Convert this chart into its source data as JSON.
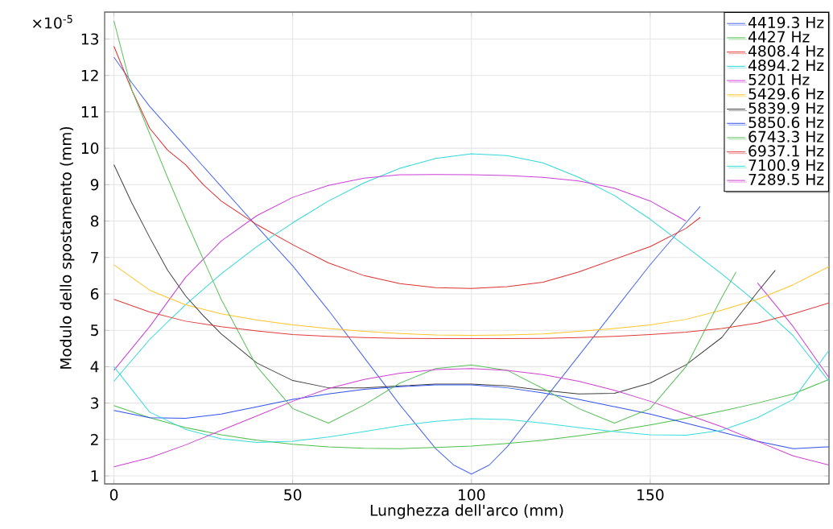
{
  "chart_data": {
    "type": "line",
    "xlabel": "Lunghezza dell'arco (mm)",
    "ylabel": "Modulo dello spostamento (mm)",
    "annotations": [
      "×10$^{-5}$"
    ],
    "x": [
      0,
      10,
      20,
      30,
      40,
      50,
      60,
      70,
      80,
      90,
      100,
      110,
      120,
      130,
      140,
      150,
      160,
      170,
      180,
      190,
      200
    ],
    "xlim": [
      -2.6,
      200
    ],
    "ylim": [
      0.78,
      13.74
    ],
    "xticks": [
      0,
      50,
      100,
      150,
      {
        "value": 200,
        "label": null
      }
    ],
    "yticks": [
      1,
      2,
      3,
      4,
      5,
      6,
      7,
      8,
      9,
      10,
      11,
      12,
      13
    ],
    "grid": true,
    "legend": "top right",
    "marker": "none",
    "line_style": "solid",
    "series": [
      {
        "name": "4419.3 Hz",
        "color": "#4a66f0",
        "x": [
          0,
          5,
          10,
          15,
          20,
          25,
          30,
          40,
          50,
          60,
          70,
          80,
          90,
          95,
          100,
          105,
          110,
          120,
          130,
          140,
          150,
          160,
          164
        ],
        "values": [
          12.5,
          11.8,
          11.15,
          10.6,
          10.05,
          9.5,
          8.95,
          7.85,
          6.77,
          5.55,
          4.25,
          2.95,
          1.75,
          1.3,
          1.05,
          1.3,
          1.8,
          3.05,
          4.3,
          5.55,
          6.8,
          7.95,
          8.4
        ]
      },
      {
        "name": "4427 Hz",
        "color": "#4cbf4c",
        "values": [
          2.93,
          2.6,
          2.33,
          2.13,
          1.98,
          1.87,
          1.8,
          1.76,
          1.75,
          1.78,
          1.82,
          1.89,
          1.98,
          2.1,
          2.24,
          2.4,
          2.58,
          2.78,
          3.0,
          3.25,
          3.65
        ]
      },
      {
        "name": "4808.4 Hz",
        "color": "#e03030",
        "x": [
          0,
          5,
          10,
          15,
          20,
          25,
          30,
          40,
          50,
          60,
          70,
          80,
          90,
          100,
          110,
          120,
          130,
          140,
          150,
          160,
          164
        ],
        "values": [
          12.8,
          11.6,
          10.55,
          9.95,
          9.55,
          9.0,
          8.55,
          7.9,
          7.35,
          6.85,
          6.5,
          6.28,
          6.17,
          6.15,
          6.2,
          6.32,
          6.6,
          6.95,
          7.3,
          7.8,
          8.1
        ]
      },
      {
        "name": "4894.2 Hz",
        "color": "#30d8d8",
        "values": [
          3.6,
          4.75,
          5.7,
          6.55,
          7.3,
          7.95,
          8.55,
          9.05,
          9.45,
          9.72,
          9.85,
          9.8,
          9.6,
          9.2,
          8.7,
          8.05,
          7.3,
          6.55,
          5.75,
          4.85,
          3.6
        ]
      },
      {
        "name": "5201 Hz",
        "color": "#cc40d8",
        "values": [
          3.9,
          5.1,
          6.45,
          7.45,
          8.15,
          8.65,
          8.98,
          9.18,
          9.27,
          9.28,
          9.27,
          9.25,
          9.2,
          9.1,
          8.9,
          8.55,
          8.0,
          null,
          6.3,
          5.1,
          3.7
        ]
      },
      {
        "name": "5429.6 Hz",
        "color": "#ffc428",
        "values": [
          6.8,
          6.1,
          5.7,
          5.45,
          5.28,
          5.15,
          5.05,
          4.97,
          4.91,
          4.87,
          4.86,
          4.87,
          4.9,
          4.97,
          5.05,
          5.15,
          5.3,
          5.55,
          5.85,
          6.25,
          6.75
        ]
      },
      {
        "name": "5839.9 Hz",
        "color": "#404040",
        "x": [
          0,
          5,
          10,
          15,
          20,
          25,
          30,
          40,
          50,
          60,
          70,
          80,
          90,
          100,
          110,
          120,
          130,
          140,
          150,
          160,
          170,
          180,
          185
        ],
        "values": [
          9.55,
          8.5,
          7.55,
          6.65,
          5.95,
          5.4,
          4.9,
          4.1,
          3.62,
          3.42,
          3.42,
          3.47,
          3.52,
          3.52,
          3.47,
          3.35,
          3.25,
          3.27,
          3.55,
          4.05,
          4.8,
          6.05,
          6.65
        ]
      },
      {
        "name": "5850.6 Hz",
        "color": "#3050f0",
        "values": [
          2.8,
          2.6,
          2.58,
          2.7,
          2.9,
          3.1,
          3.25,
          3.38,
          3.45,
          3.5,
          3.5,
          3.42,
          3.28,
          3.1,
          2.9,
          2.7,
          2.45,
          2.2,
          1.95,
          1.75,
          1.8
        ]
      },
      {
        "name": "6743.3 Hz",
        "color": "#5cc05c",
        "x": [
          0,
          5,
          10,
          15,
          20,
          25,
          30,
          40,
          50,
          60,
          70,
          80,
          90,
          100,
          110,
          120,
          130,
          140,
          150,
          160,
          170,
          174
        ],
        "values": [
          13.5,
          11.6,
          10.4,
          9.2,
          8.05,
          6.95,
          5.85,
          4.0,
          2.85,
          2.45,
          2.95,
          3.55,
          3.95,
          4.05,
          3.9,
          3.4,
          2.85,
          2.45,
          2.85,
          4.0,
          5.9,
          6.6
        ]
      },
      {
        "name": "6937.1 Hz",
        "color": "#e03a3a",
        "values": [
          5.85,
          5.5,
          5.25,
          5.1,
          4.98,
          4.88,
          4.83,
          4.8,
          4.78,
          4.77,
          4.77,
          4.77,
          4.78,
          4.8,
          4.83,
          4.88,
          4.95,
          5.05,
          5.2,
          5.45,
          5.75
        ]
      },
      {
        "name": "7100.9 Hz",
        "color": "#38dcdc",
        "values": [
          4.0,
          2.75,
          2.28,
          2.02,
          1.92,
          1.95,
          2.07,
          2.22,
          2.38,
          2.5,
          2.57,
          2.55,
          2.45,
          2.33,
          2.22,
          2.13,
          2.12,
          2.25,
          2.6,
          3.1,
          4.45
        ]
      },
      {
        "name": "7289.5 Hz",
        "color": "#d040d0",
        "values": [
          1.25,
          1.5,
          1.85,
          2.25,
          2.65,
          3.05,
          3.4,
          3.65,
          3.82,
          3.92,
          3.95,
          3.9,
          3.78,
          3.6,
          3.35,
          3.05,
          2.7,
          2.35,
          1.95,
          1.55,
          1.3
        ]
      }
    ]
  }
}
